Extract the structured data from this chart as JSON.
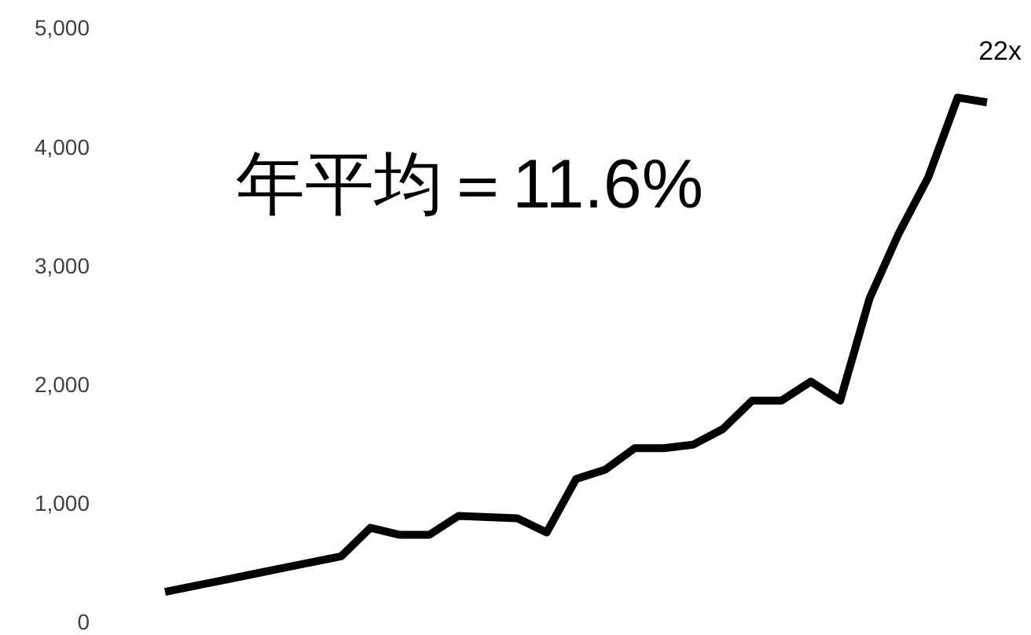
{
  "chart_data": {
    "type": "line",
    "categories": [
      null,
      null,
      null,
      null,
      null,
      null,
      null,
      null,
      null,
      null,
      null,
      null,
      null,
      null,
      null,
      null,
      null,
      null,
      null,
      null,
      null,
      null,
      null,
      null,
      null,
      null,
      null,
      null,
      null
    ],
    "series": [
      {
        "color": "#000000",
        "values": [
          270,
          320,
          370,
          420,
          470,
          520,
          570,
          810,
          750,
          750,
          910,
          900,
          890,
          770,
          1220,
          1300,
          1480,
          1480,
          1510,
          1640,
          1880,
          1880,
          2040,
          1880,
          2740,
          3290,
          3760,
          4430,
          4390
        ]
      }
    ],
    "ylim": [
      0,
      5000
    ],
    "yticks": [
      {
        "value": 0,
        "label": "0"
      },
      {
        "value": 1000,
        "label": "1,000"
      },
      {
        "value": 2000,
        "label": "2,000"
      },
      {
        "value": 3000,
        "label": "3,000"
      },
      {
        "value": 4000,
        "label": "4,000"
      },
      {
        "value": 5000,
        "label": "5,000"
      }
    ],
    "grid": false,
    "marker": "none",
    "line_style": "solid",
    "annotations": [
      "年平均＝11.6%",
      "22x"
    ]
  }
}
